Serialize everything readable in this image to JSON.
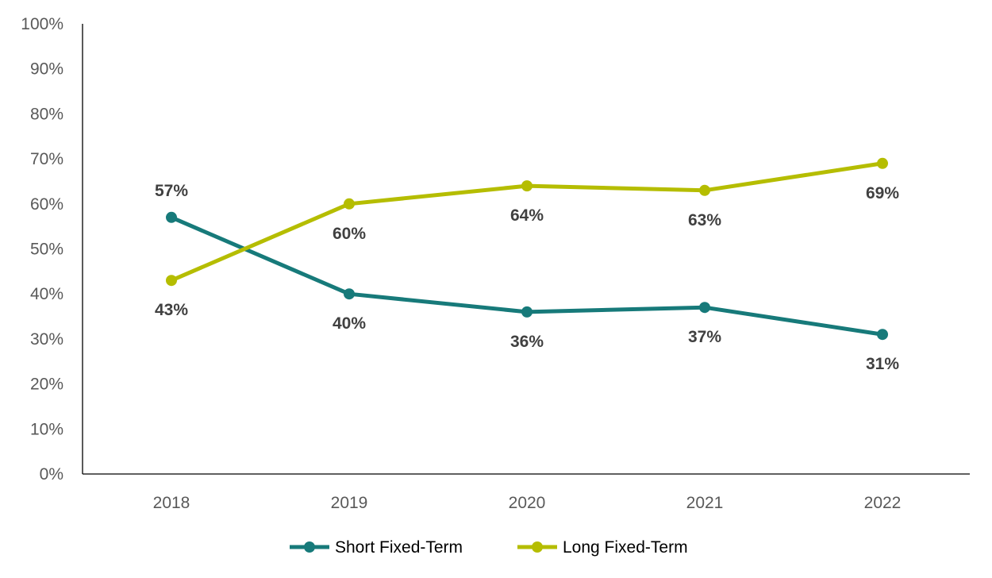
{
  "chart_data": {
    "type": "line",
    "title": "",
    "xlabel": "",
    "ylabel": "",
    "categories": [
      "2018",
      "2019",
      "2020",
      "2021",
      "2022"
    ],
    "ylim": [
      0,
      100
    ],
    "y_ticks": [
      "0%",
      "10%",
      "20%",
      "30%",
      "40%",
      "50%",
      "60%",
      "70%",
      "80%",
      "90%",
      "100%"
    ],
    "grid": false,
    "legend_position": "bottom",
    "series": [
      {
        "name": "Short Fixed-Term",
        "color": "#177A7A",
        "values": [
          57,
          40,
          36,
          37,
          31
        ],
        "labels": [
          "57%",
          "40%",
          "36%",
          "37%",
          "31%"
        ],
        "label_side": [
          "above",
          "below",
          "below",
          "below",
          "below"
        ]
      },
      {
        "name": "Long Fixed-Term",
        "color": "#B5BD00",
        "values": [
          43,
          60,
          64,
          63,
          69
        ],
        "labels": [
          "43%",
          "60%",
          "64%",
          "63%",
          "69%"
        ],
        "label_side": [
          "below",
          "below",
          "below",
          "below",
          "below"
        ]
      }
    ]
  }
}
